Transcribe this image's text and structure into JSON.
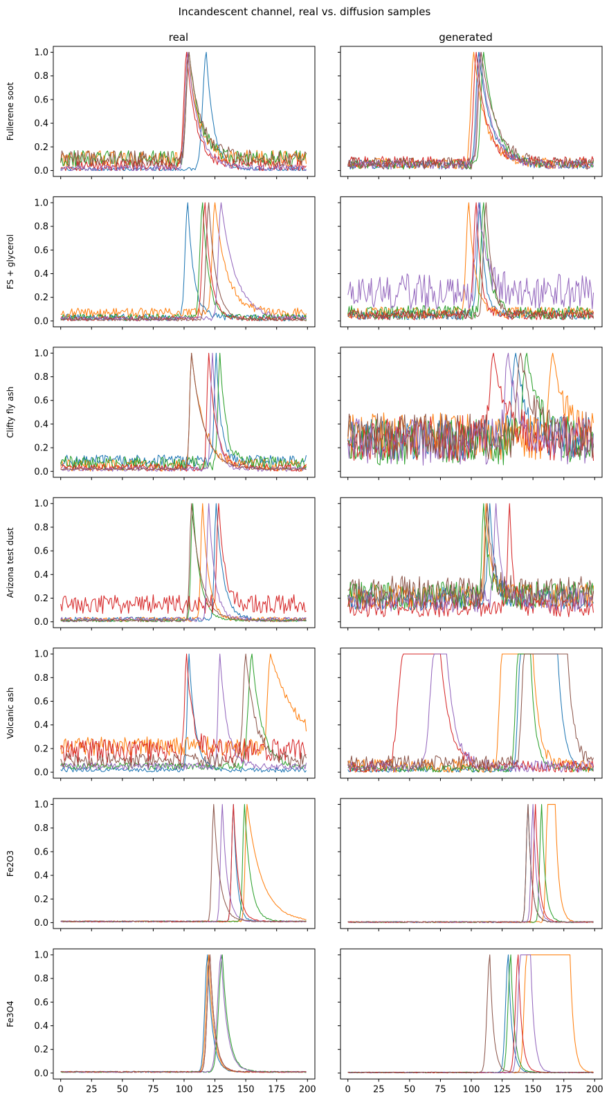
{
  "title": "Incandescent channel, real vs. diffusion samples",
  "columns": [
    "real",
    "generated"
  ],
  "rows": [
    "Fullerene soot",
    "FS + glycerol",
    "Clifty fly ash",
    "Arizona test dust",
    "Volcanic ash",
    "Fe2O3",
    "Fe3O4"
  ],
  "x_ticks": [
    0,
    25,
    50,
    75,
    100,
    125,
    150,
    175,
    200
  ],
  "x_tick_labels": [
    "0",
    "25",
    "50",
    "75",
    "100",
    "125",
    "150",
    "175",
    "200"
  ],
  "y_ticks": [
    0.0,
    0.2,
    0.4,
    0.6,
    0.8,
    1.0
  ],
  "y_tick_labels": [
    "0.0",
    "0.2",
    "0.4",
    "0.6",
    "0.8",
    "1.0"
  ],
  "colors": [
    "#1f77b4",
    "#ff7f0e",
    "#2ca02c",
    "#d62728",
    "#9467bd",
    "#8c564b"
  ],
  "chart_data": {
    "type": "line",
    "title": "Incandescent channel, real vs. diffusion samples",
    "xlim": [
      -6,
      206
    ],
    "ylim": [
      -0.05,
      1.05
    ],
    "grid": false,
    "legend": "none",
    "panels": [
      {
        "row": "Fullerene soot",
        "column": "real",
        "peaks": [
          118,
          103,
          104,
          102,
          103,
          104
        ],
        "widths": [
          4,
          3,
          3,
          3,
          3,
          3
        ],
        "decays": [
          6,
          9,
          9,
          8,
          9,
          10
        ],
        "baselines": [
          0.01,
          0.1,
          0.1,
          0.04,
          0.02,
          0.1
        ],
        "noise": [
          0.02,
          0.07,
          0.07,
          0.05,
          0.03,
          0.07
        ],
        "plateaus": [
          0,
          0,
          0,
          0,
          0,
          0
        ]
      },
      {
        "row": "Fullerene soot",
        "column": "generated",
        "peaks": [
          106,
          102,
          110,
          104,
          107,
          108
        ],
        "widths": [
          3,
          3,
          3,
          3,
          3,
          3
        ],
        "decays": [
          10,
          10,
          10,
          9,
          10,
          12
        ],
        "baselines": [
          0.05,
          0.06,
          0.05,
          0.07,
          0.05,
          0.06
        ],
        "noise": [
          0.04,
          0.05,
          0.04,
          0.05,
          0.04,
          0.05
        ],
        "plateaus": [
          0,
          0,
          0,
          0,
          0,
          0
        ]
      },
      {
        "row": "FS + glycerol",
        "column": "real",
        "peaks": [
          103,
          125,
          115,
          117,
          130,
          120
        ],
        "widths": [
          3,
          3,
          3,
          3,
          3,
          3
        ],
        "decays": [
          5,
          10,
          5,
          5,
          12,
          6
        ],
        "baselines": [
          0.03,
          0.07,
          0.03,
          0.02,
          0.02,
          0.01
        ],
        "noise": [
          0.03,
          0.04,
          0.03,
          0.02,
          0.02,
          0.01
        ],
        "plateaus": [
          0,
          0,
          0,
          0,
          0,
          0
        ]
      },
      {
        "row": "FS + glycerol",
        "column": "generated",
        "peaks": [
          107,
          98,
          110,
          104,
          106,
          112
        ],
        "widths": [
          3,
          3,
          3,
          3,
          3,
          3
        ],
        "decays": [
          4,
          5,
          5,
          4,
          6,
          5
        ],
        "baselines": [
          0.05,
          0.07,
          0.07,
          0.05,
          0.25,
          0.05
        ],
        "noise": [
          0.04,
          0.05,
          0.06,
          0.04,
          0.15,
          0.04
        ],
        "plateaus": [
          0,
          0,
          0,
          0,
          0,
          0
        ]
      },
      {
        "row": "Clifty fly ash",
        "column": "real",
        "peaks": [
          126,
          106,
          129,
          120,
          123,
          106
        ],
        "widths": [
          2,
          2,
          2,
          2,
          2,
          2
        ],
        "decays": [
          4,
          10,
          5,
          6,
          4,
          10
        ],
        "baselines": [
          0.09,
          0.05,
          0.07,
          0.03,
          0.02,
          0.02
        ],
        "noise": [
          0.05,
          0.05,
          0.06,
          0.03,
          0.02,
          0.01
        ],
        "plateaus": [
          0,
          0,
          0,
          0,
          0,
          0
        ]
      },
      {
        "row": "Clifty fly ash",
        "column": "generated",
        "peaks": [
          136,
          166,
          145,
          118,
          130,
          140
        ],
        "widths": [
          4,
          4,
          4,
          4,
          4,
          4
        ],
        "decays": [
          8,
          10,
          10,
          10,
          8,
          10
        ],
        "baselines": [
          0.28,
          0.3,
          0.25,
          0.28,
          0.25,
          0.3
        ],
        "noise": [
          0.18,
          0.2,
          0.2,
          0.2,
          0.2,
          0.2
        ],
        "plateaus": [
          0,
          0,
          0,
          0,
          0,
          0
        ]
      },
      {
        "row": "Arizona test dust",
        "column": "real",
        "peaks": [
          126,
          115,
          107,
          128,
          120,
          106
        ],
        "widths": [
          2,
          2,
          2,
          2,
          2,
          2
        ],
        "decays": [
          6,
          5,
          6,
          5,
          5,
          8
        ],
        "baselines": [
          0.02,
          0.02,
          0.01,
          0.15,
          0.02,
          0.01
        ],
        "noise": [
          0.02,
          0.02,
          0.01,
          0.08,
          0.02,
          0.01
        ],
        "plateaus": [
          0,
          0,
          0,
          0,
          0,
          0
        ]
      },
      {
        "row": "Arizona test dust",
        "column": "generated",
        "peaks": [
          115,
          112,
          110,
          131,
          120,
          113
        ],
        "widths": [
          2,
          2,
          2,
          2,
          2,
          2
        ],
        "decays": [
          4,
          4,
          4,
          3,
          4,
          4
        ],
        "baselines": [
          0.2,
          0.22,
          0.22,
          0.12,
          0.18,
          0.25
        ],
        "noise": [
          0.1,
          0.1,
          0.12,
          0.08,
          0.1,
          0.14
        ],
        "plateaus": [
          0,
          0,
          0,
          0,
          0,
          0
        ]
      },
      {
        "row": "Volcanic ash",
        "column": "real",
        "peaks": [
          104,
          170,
          155,
          102,
          129,
          150
        ],
        "widths": [
          2,
          3,
          4,
          2,
          2,
          3
        ],
        "decays": [
          5,
          20,
          8,
          5,
          6,
          8
        ],
        "baselines": [
          0.02,
          0.22,
          0.05,
          0.18,
          0.05,
          0.1
        ],
        "noise": [
          0.02,
          0.08,
          0.03,
          0.1,
          0.03,
          0.06
        ],
        "plateaus": [
          0,
          0,
          0,
          0,
          0,
          0
        ]
      },
      {
        "row": "Volcanic ash",
        "column": "generated",
        "peaks": [
          140,
          125,
          138,
          45,
          70,
          143
        ],
        "widths": [
          3,
          3,
          3,
          6,
          5,
          3
        ],
        "decays": [
          5,
          5,
          4,
          8,
          7,
          5
        ],
        "baselines": [
          0.02,
          0.05,
          0.03,
          0.05,
          0.05,
          0.08
        ],
        "noise": [
          0.02,
          0.06,
          0.03,
          0.05,
          0.05,
          0.06
        ],
        "plateaus": [
          30,
          25,
          10,
          30,
          10,
          35
        ]
      },
      {
        "row": "Fe2O3",
        "column": "real",
        "peaks": [
          140,
          151,
          149,
          140,
          131,
          124
        ],
        "widths": [
          2,
          2,
          2,
          2,
          2,
          2
        ],
        "decays": [
          3,
          12,
          5,
          4,
          4,
          5
        ],
        "baselines": [
          0.01,
          0.01,
          0.01,
          0.01,
          0.01,
          0.01
        ],
        "noise": [
          0.005,
          0.005,
          0.005,
          0.005,
          0.005,
          0.005
        ],
        "plateaus": [
          0,
          0,
          0,
          0,
          0,
          0
        ]
      },
      {
        "row": "Fe2O3",
        "column": "generated",
        "peaks": [
          146,
          162,
          157,
          152,
          150,
          146
        ],
        "widths": [
          2,
          2,
          2,
          2,
          2,
          2
        ],
        "decays": [
          3,
          3,
          3,
          3,
          3,
          3
        ],
        "baselines": [
          0.005,
          0.005,
          0.005,
          0.005,
          0.005,
          0.005
        ],
        "noise": [
          0.005,
          0.005,
          0.005,
          0.005,
          0.005,
          0.005
        ],
        "plateaus": [
          0,
          6,
          0,
          0,
          0,
          0
        ]
      },
      {
        "row": "Fe3O4",
        "column": "real",
        "peaks": [
          119,
          120,
          131,
          121,
          130,
          121
        ],
        "widths": [
          3,
          3,
          4,
          3,
          4,
          3
        ],
        "decays": [
          4,
          4,
          5,
          4,
          5,
          4
        ],
        "baselines": [
          0.01,
          0.01,
          0.01,
          0.01,
          0.01,
          0.01
        ],
        "noise": [
          0.005,
          0.005,
          0.005,
          0.005,
          0.005,
          0.005
        ],
        "plateaus": [
          0,
          0,
          0,
          0,
          0,
          0
        ]
      },
      {
        "row": "Fe3O4",
        "column": "generated",
        "peaks": [
          130,
          145,
          132,
          138,
          140,
          115
        ],
        "widths": [
          3,
          3,
          3,
          3,
          3,
          3
        ],
        "decays": [
          3,
          3,
          3,
          3,
          3,
          3
        ],
        "baselines": [
          0.005,
          0.005,
          0.005,
          0.005,
          0.005,
          0.005
        ],
        "noise": [
          0.004,
          0.004,
          0.004,
          0.004,
          0.004,
          0.004
        ],
        "plateaus": [
          0,
          35,
          0,
          0,
          8,
          0
        ]
      }
    ]
  }
}
